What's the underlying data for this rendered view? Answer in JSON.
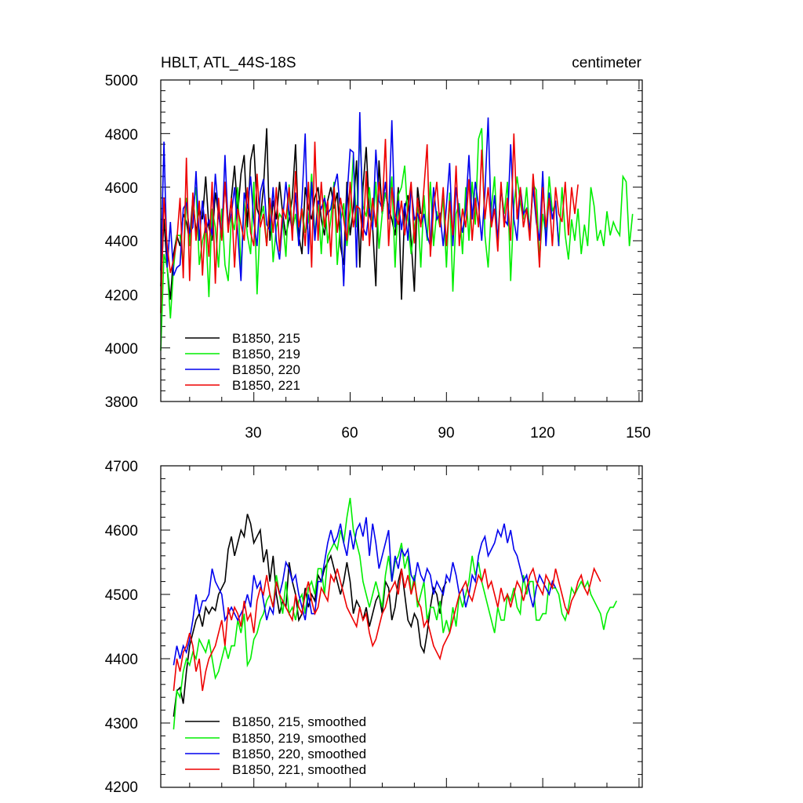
{
  "chart_data": [
    {
      "type": "line",
      "title": "HBLT, ATL_44S-18S",
      "units": "centimeter",
      "xlim": [
        1,
        151
      ],
      "ylim": [
        3800,
        5000
      ],
      "xticks": [
        30,
        60,
        90,
        120,
        150
      ],
      "xtick_labels": [
        "30",
        "60",
        "90",
        "120",
        "150"
      ],
      "yticks": [
        3800,
        4000,
        4200,
        4400,
        4600,
        4800,
        5000
      ],
      "ytick_labels": [
        "3800",
        "4000",
        "4200",
        "4400",
        "4600",
        "4800",
        "5000"
      ],
      "legend_position": "bottom-left",
      "series": [
        {
          "name": "B1850, 215",
          "color": "#000000",
          "start": 1,
          "values": [
            4230,
            4480,
            4300,
            4180,
            4350,
            4420,
            4380,
            4500,
            4470,
            4400,
            4560,
            4430,
            4520,
            4480,
            4640,
            4450,
            4400,
            4580,
            4500,
            4420,
            4620,
            4450,
            4560,
            4680,
            4500,
            4650,
            4720,
            4450,
            4700,
            4760,
            4520,
            4480,
            4600,
            4820,
            4400,
            4550,
            4480,
            4620,
            4500,
            4420,
            4480,
            4560,
            4760,
            4420,
            4350,
            4600,
            4520,
            4480,
            4560,
            4600,
            4480,
            4420,
            4550,
            4600,
            4520,
            4580,
            4380,
            4310,
            4620,
            4420,
            4520,
            4700,
            4300,
            4600,
            4750,
            4500,
            4450,
            4230,
            4700,
            4500,
            4580,
            4520,
            4480,
            4420,
            4600,
            4180,
            4520,
            4570,
            4400,
            4210,
            4600,
            4500
          ]
        },
        {
          "name": "B1850, 219",
          "color": "#00ee00",
          "start": 1,
          "values": [
            3990,
            4350,
            4300,
            4110,
            4300,
            4420,
            4420,
            4300,
            4560,
            4380,
            4520,
            4600,
            4310,
            4400,
            4450,
            4190,
            4520,
            4450,
            4300,
            4520,
            4310,
            4250,
            4490,
            4440,
            4600,
            4280,
            4550,
            4420,
            4350,
            4620,
            4200,
            4480,
            4530,
            4380,
            4560,
            4320,
            4450,
            4500,
            4480,
            4340,
            4610,
            4440,
            4500,
            4390,
            4520,
            4430,
            4470,
            4650,
            4420,
            4550,
            4350,
            4570,
            4390,
            4480,
            4620,
            4310,
            4470,
            4540,
            4380,
            4500,
            4720,
            4450,
            4810,
            4530,
            4490,
            4600,
            4450,
            4620,
            4370,
            4500,
            4580,
            4520,
            4640,
            4300,
            4570,
            4600,
            4680,
            4480,
            4350,
            4450,
            4530,
            4300,
            4570,
            4400,
            4620,
            4380,
            4510,
            4450,
            4560,
            4300,
            4580,
            4210,
            4500,
            4540,
            4350,
            4600,
            4400,
            4620,
            4460,
            4780,
            4820,
            4420,
            4300,
            4520,
            4640,
            4380,
            4600,
            4500,
            4620,
            4250,
            4530,
            4640,
            4540,
            4480,
            4600,
            4420,
            4610,
            4590,
            4330,
            4500,
            4420,
            4640,
            4510,
            4540,
            4380,
            4600,
            4420,
            4330,
            4480,
            4400,
            4520,
            4350,
            4460,
            4380,
            4600,
            4530,
            4400,
            4440,
            4380,
            4510,
            4420,
            4470,
            4440,
            4420,
            4640,
            4620,
            4380,
            4500
          ]
        },
        {
          "name": "B1850, 220",
          "color": "#0000ee",
          "start": 1,
          "values": [
            4290,
            4770,
            4300,
            4470,
            4270,
            4300,
            4310,
            4520,
            4540,
            4430,
            4450,
            4660,
            4400,
            4550,
            4430,
            4480,
            4420,
            4650,
            4500,
            4410,
            4720,
            4450,
            4500,
            4600,
            4430,
            4250,
            4580,
            4520,
            4640,
            4470,
            4380,
            4580,
            4630,
            4460,
            4440,
            4600,
            4400,
            4330,
            4480,
            4620,
            4500,
            4440,
            4580,
            4380,
            4550,
            4800,
            4350,
            4620,
            4400,
            4550,
            4520,
            4560,
            4500,
            4520,
            4600,
            4650,
            4500,
            4230,
            4560,
            4740,
            4730,
            4300,
            4880,
            4450,
            4420,
            4520,
            4440,
            4740,
            4550,
            4520,
            4620,
            4480,
            4850,
            4450,
            4550,
            4440,
            4540,
            4400,
            4600,
            4480,
            4500,
            4460,
            4500,
            4420,
            4380,
            4600,
            4480,
            4500,
            4380,
            4530,
            4690,
            4380,
            4600,
            4500,
            4430,
            4520,
            4720,
            4480,
            4620,
            4530,
            4400,
            4580,
            4860,
            4450,
            4570,
            4400,
            4600,
            4480,
            4460,
            4760,
            4480,
            4400,
            4600,
            4500,
            4520,
            4440,
            4600,
            4470,
            4400,
            4660,
            4380,
            4580,
            4480,
            4550,
            4380
          ]
        },
        {
          "name": "B1850, 221",
          "color": "#ee0000",
          "start": 1,
          "values": [
            4130,
            4560,
            4380,
            4280,
            4330,
            4400,
            4560,
            4260,
            4710,
            4250,
            4580,
            4400,
            4550,
            4270,
            4500,
            4340,
            4620,
            4240,
            4560,
            4400,
            4620,
            4430,
            4560,
            4300,
            4520,
            4460,
            4400,
            4600,
            4430,
            4380,
            4650,
            4450,
            4500,
            4380,
            4560,
            4430,
            4600,
            4360,
            4520,
            4480,
            4600,
            4400,
            4660,
            4450,
            4520,
            4380,
            4620,
            4300,
            4770,
            4400,
            4620,
            4450,
            4550,
            4340,
            4600,
            4430,
            4560,
            4480,
            4400,
            4620,
            4450,
            4530,
            4520,
            4400,
            4660,
            4380,
            4560,
            4450,
            4620,
            4510,
            4780,
            4380,
            4600,
            4500,
            4460,
            4550,
            4420,
            4520,
            4620,
            4390,
            4560,
            4450,
            4600,
            4760,
            4340,
            4520,
            4620,
            4450,
            4600,
            4380,
            4550,
            4420,
            4680,
            4380,
            4520,
            4450,
            4630,
            4400,
            4560,
            4450,
            4740,
            4480,
            4600,
            4450,
            4520,
            4360,
            4620,
            4450,
            4560,
            4400,
            4800,
            4480,
            4600,
            4450,
            4520,
            4400,
            4650,
            4500,
            4300,
            4600,
            4450,
            4560,
            4380,
            4600,
            4500,
            4470,
            4620,
            4420,
            4600,
            4500,
            4610
          ]
        }
      ]
    },
    {
      "type": "line",
      "title": "",
      "xlim": [
        1,
        151
      ],
      "ylim": [
        4200,
        4700
      ],
      "xticks": [
        30,
        60,
        90,
        120,
        150
      ],
      "yticks": [
        4200,
        4300,
        4400,
        4500,
        4600,
        4700
      ],
      "ytick_labels": [
        "4200",
        "4300",
        "4400",
        "4500",
        "4600",
        "4700"
      ],
      "legend_position": "bottom-left",
      "series": [
        {
          "name": "B1850, 215, smoothed",
          "color": "#000000",
          "start": 5,
          "values": [
            4310,
            4350,
            4355,
            4330,
            4380,
            4420,
            4440,
            4460,
            4470,
            4450,
            4480,
            4470,
            4480,
            4475,
            4500,
            4510,
            4520,
            4570,
            4590,
            4560,
            4580,
            4600,
            4590,
            4625,
            4610,
            4580,
            4590,
            4600,
            4550,
            4570,
            4520,
            4560,
            4500,
            4470,
            4490,
            4480,
            4550,
            4520,
            4500,
            4460,
            4470,
            4510,
            4480,
            4500,
            4490,
            4530,
            4520,
            4540,
            4550,
            4560,
            4540,
            4520,
            4500,
            4520,
            4550,
            4520,
            4470,
            4490,
            4480,
            4460,
            4480,
            4450,
            4470,
            4490,
            4500,
            4470,
            4520,
            4510,
            4460,
            4480,
            4520,
            4540,
            4500,
            4460,
            4450,
            4470,
            4460,
            4420,
            4410,
            4440,
            4480,
            4510,
            4500,
            4470,
            4510,
            4520
          ]
        },
        {
          "name": "B1850, 219, smoothed",
          "color": "#00ee00",
          "start": 5,
          "values": [
            4290,
            4350,
            4340,
            4380,
            4400,
            4390,
            4410,
            4400,
            4430,
            4420,
            4410,
            4430,
            4400,
            4370,
            4380,
            4400,
            4420,
            4400,
            4420,
            4420,
            4460,
            4440,
            4470,
            4390,
            4400,
            4430,
            4440,
            4460,
            4470,
            4490,
            4500,
            4480,
            4530,
            4500,
            4470,
            4520,
            4470,
            4480,
            4460,
            4490,
            4500,
            4470,
            4510,
            4520,
            4500,
            4540,
            4540,
            4500,
            4560,
            4570,
            4580,
            4570,
            4600,
            4580,
            4620,
            4650,
            4600,
            4580,
            4560,
            4520,
            4500,
            4480,
            4500,
            4520,
            4500,
            4480,
            4530,
            4560,
            4520,
            4550,
            4560,
            4580,
            4540,
            4560,
            4500,
            4530,
            4480,
            4500,
            4520,
            4460,
            4480,
            4480,
            4460,
            4490,
            4440,
            4460,
            4440,
            4480,
            4450,
            4500,
            4480,
            4500,
            4520,
            4560,
            4530,
            4550,
            4520,
            4500,
            4480,
            4460,
            4440,
            4480,
            4460,
            4460,
            4500,
            4490,
            4510,
            4480,
            4470,
            4530,
            4500,
            4520,
            4520,
            4460,
            4460,
            4470,
            4470,
            4520,
            4510,
            4510,
            4500,
            4470,
            4460,
            4480,
            4510,
            4500,
            4510,
            4520,
            4510,
            4520,
            4500,
            4490,
            4480,
            4470,
            4445,
            4470,
            4480,
            4480,
            4490
          ]
        },
        {
          "name": "B1850, 220, smoothed",
          "color": "#0000ee",
          "start": 5,
          "values": [
            4390,
            4420,
            4400,
            4420,
            4410,
            4430,
            4460,
            4500,
            4470,
            4490,
            4490,
            4500,
            4540,
            4520,
            4510,
            4500,
            4460,
            4470,
            4480,
            4470,
            4460,
            4470,
            4480,
            4500,
            4480,
            4530,
            4510,
            4520,
            4490,
            4460,
            4480,
            4470,
            4520,
            4500,
            4520,
            4550,
            4540,
            4520,
            4530,
            4500,
            4480,
            4460,
            4500,
            4470,
            4470,
            4520,
            4520,
            4550,
            4580,
            4600,
            4580,
            4590,
            4610,
            4580,
            4560,
            4600,
            4570,
            4600,
            4610,
            4590,
            4620,
            4560,
            4610,
            4580,
            4540,
            4560,
            4580,
            4600,
            4520,
            4560,
            4540,
            4570,
            4560,
            4570,
            4530,
            4520,
            4550,
            4530,
            4520,
            4540,
            4530,
            4500,
            4520,
            4510,
            4500,
            4530,
            4520,
            4550,
            4530,
            4500,
            4510,
            4480,
            4500,
            4530,
            4520,
            4560,
            4580,
            4590,
            4560,
            4570,
            4580,
            4600,
            4590,
            4610,
            4580,
            4600,
            4570,
            4560,
            4540,
            4520,
            4530,
            4500,
            4480,
            4510,
            4530,
            4520,
            4510,
            4500,
            4520,
            4510
          ]
        },
        {
          "name": "B1850, 221, smoothed",
          "color": "#ee0000",
          "start": 5,
          "values": [
            4350,
            4400,
            4380,
            4410,
            4420,
            4440,
            4420,
            4380,
            4400,
            4350,
            4380,
            4400,
            4410,
            4420,
            4440,
            4460,
            4420,
            4480,
            4460,
            4480,
            4470,
            4450,
            4490,
            4460,
            4470,
            4440,
            4490,
            4510,
            4500,
            4530,
            4500,
            4480,
            4520,
            4500,
            4490,
            4480,
            4470,
            4460,
            4500,
            4480,
            4470,
            4500,
            4520,
            4490,
            4470,
            4480,
            4510,
            4500,
            4490,
            4530,
            4520,
            4540,
            4520,
            4500,
            4480,
            4470,
            4460,
            4450,
            4480,
            4460,
            4470,
            4440,
            4420,
            4430,
            4450,
            4470,
            4480,
            4500,
            4510,
            4520,
            4500,
            4540,
            4510,
            4530,
            4500,
            4520,
            4490,
            4480,
            4450,
            4460,
            4440,
            4420,
            4410,
            4400,
            4420,
            4430,
            4440,
            4460,
            4480,
            4500,
            4510,
            4520,
            4500,
            4490,
            4510,
            4530,
            4520,
            4540,
            4510,
            4520,
            4500,
            4480,
            4510,
            4490,
            4500,
            4480,
            4500,
            4520,
            4510,
            4490,
            4510,
            4530,
            4540,
            4520,
            4510,
            4500,
            4530,
            4520,
            4510,
            4540,
            4520,
            4500,
            4480,
            4470,
            4490,
            4500,
            4520,
            4530,
            4510,
            4500,
            4520,
            4540,
            4530,
            4520
          ]
        }
      ]
    }
  ]
}
